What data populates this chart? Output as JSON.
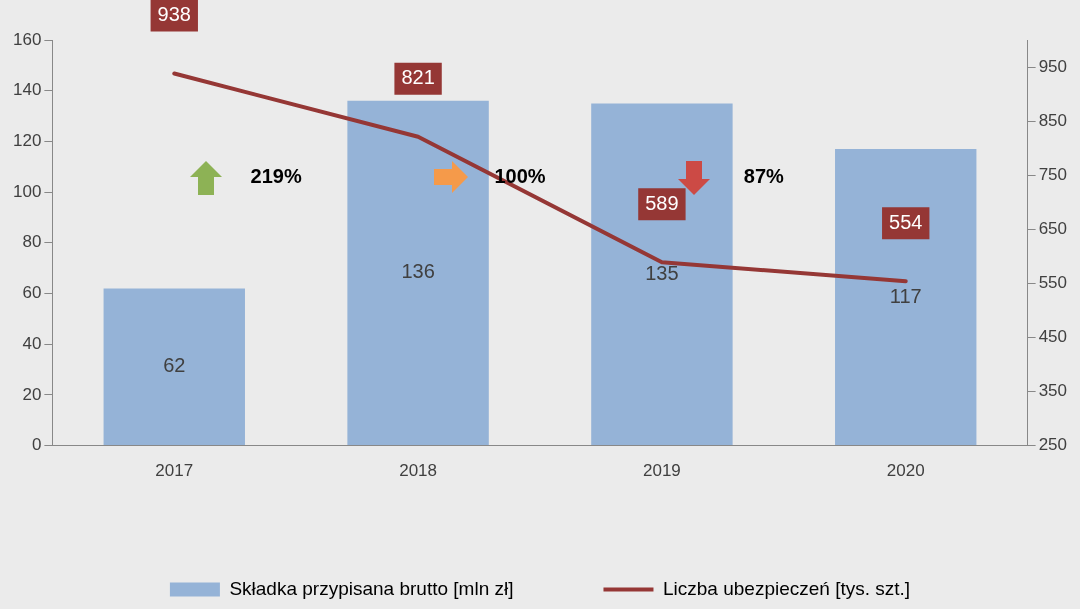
{
  "chart_data": {
    "type": "bar",
    "categories": [
      "2017",
      "2018",
      "2019",
      "2020"
    ],
    "series": [
      {
        "name": "Składka przypisana brutto [mln zł]",
        "color": "#95b3d7",
        "values": [
          62,
          136,
          135,
          117
        ]
      },
      {
        "name": "Liczba ubezpieczeń [tys. szt.]",
        "type": "line",
        "axis": "y2",
        "color": "#953735",
        "values": [
          938,
          821,
          589,
          554
        ]
      }
    ],
    "ylim": [
      0,
      160
    ],
    "yticks": [
      0,
      20,
      40,
      60,
      80,
      100,
      120,
      140,
      160
    ],
    "y2lim": [
      250,
      1000
    ],
    "y2ticks": [
      250,
      350,
      450,
      550,
      650,
      750,
      850,
      950
    ],
    "annotations": [
      "219%",
      "100%",
      "87%"
    ],
    "data_labels": true,
    "legend": "bottom",
    "grid": false,
    "marker": "none",
    "line_style": "solid"
  }
}
